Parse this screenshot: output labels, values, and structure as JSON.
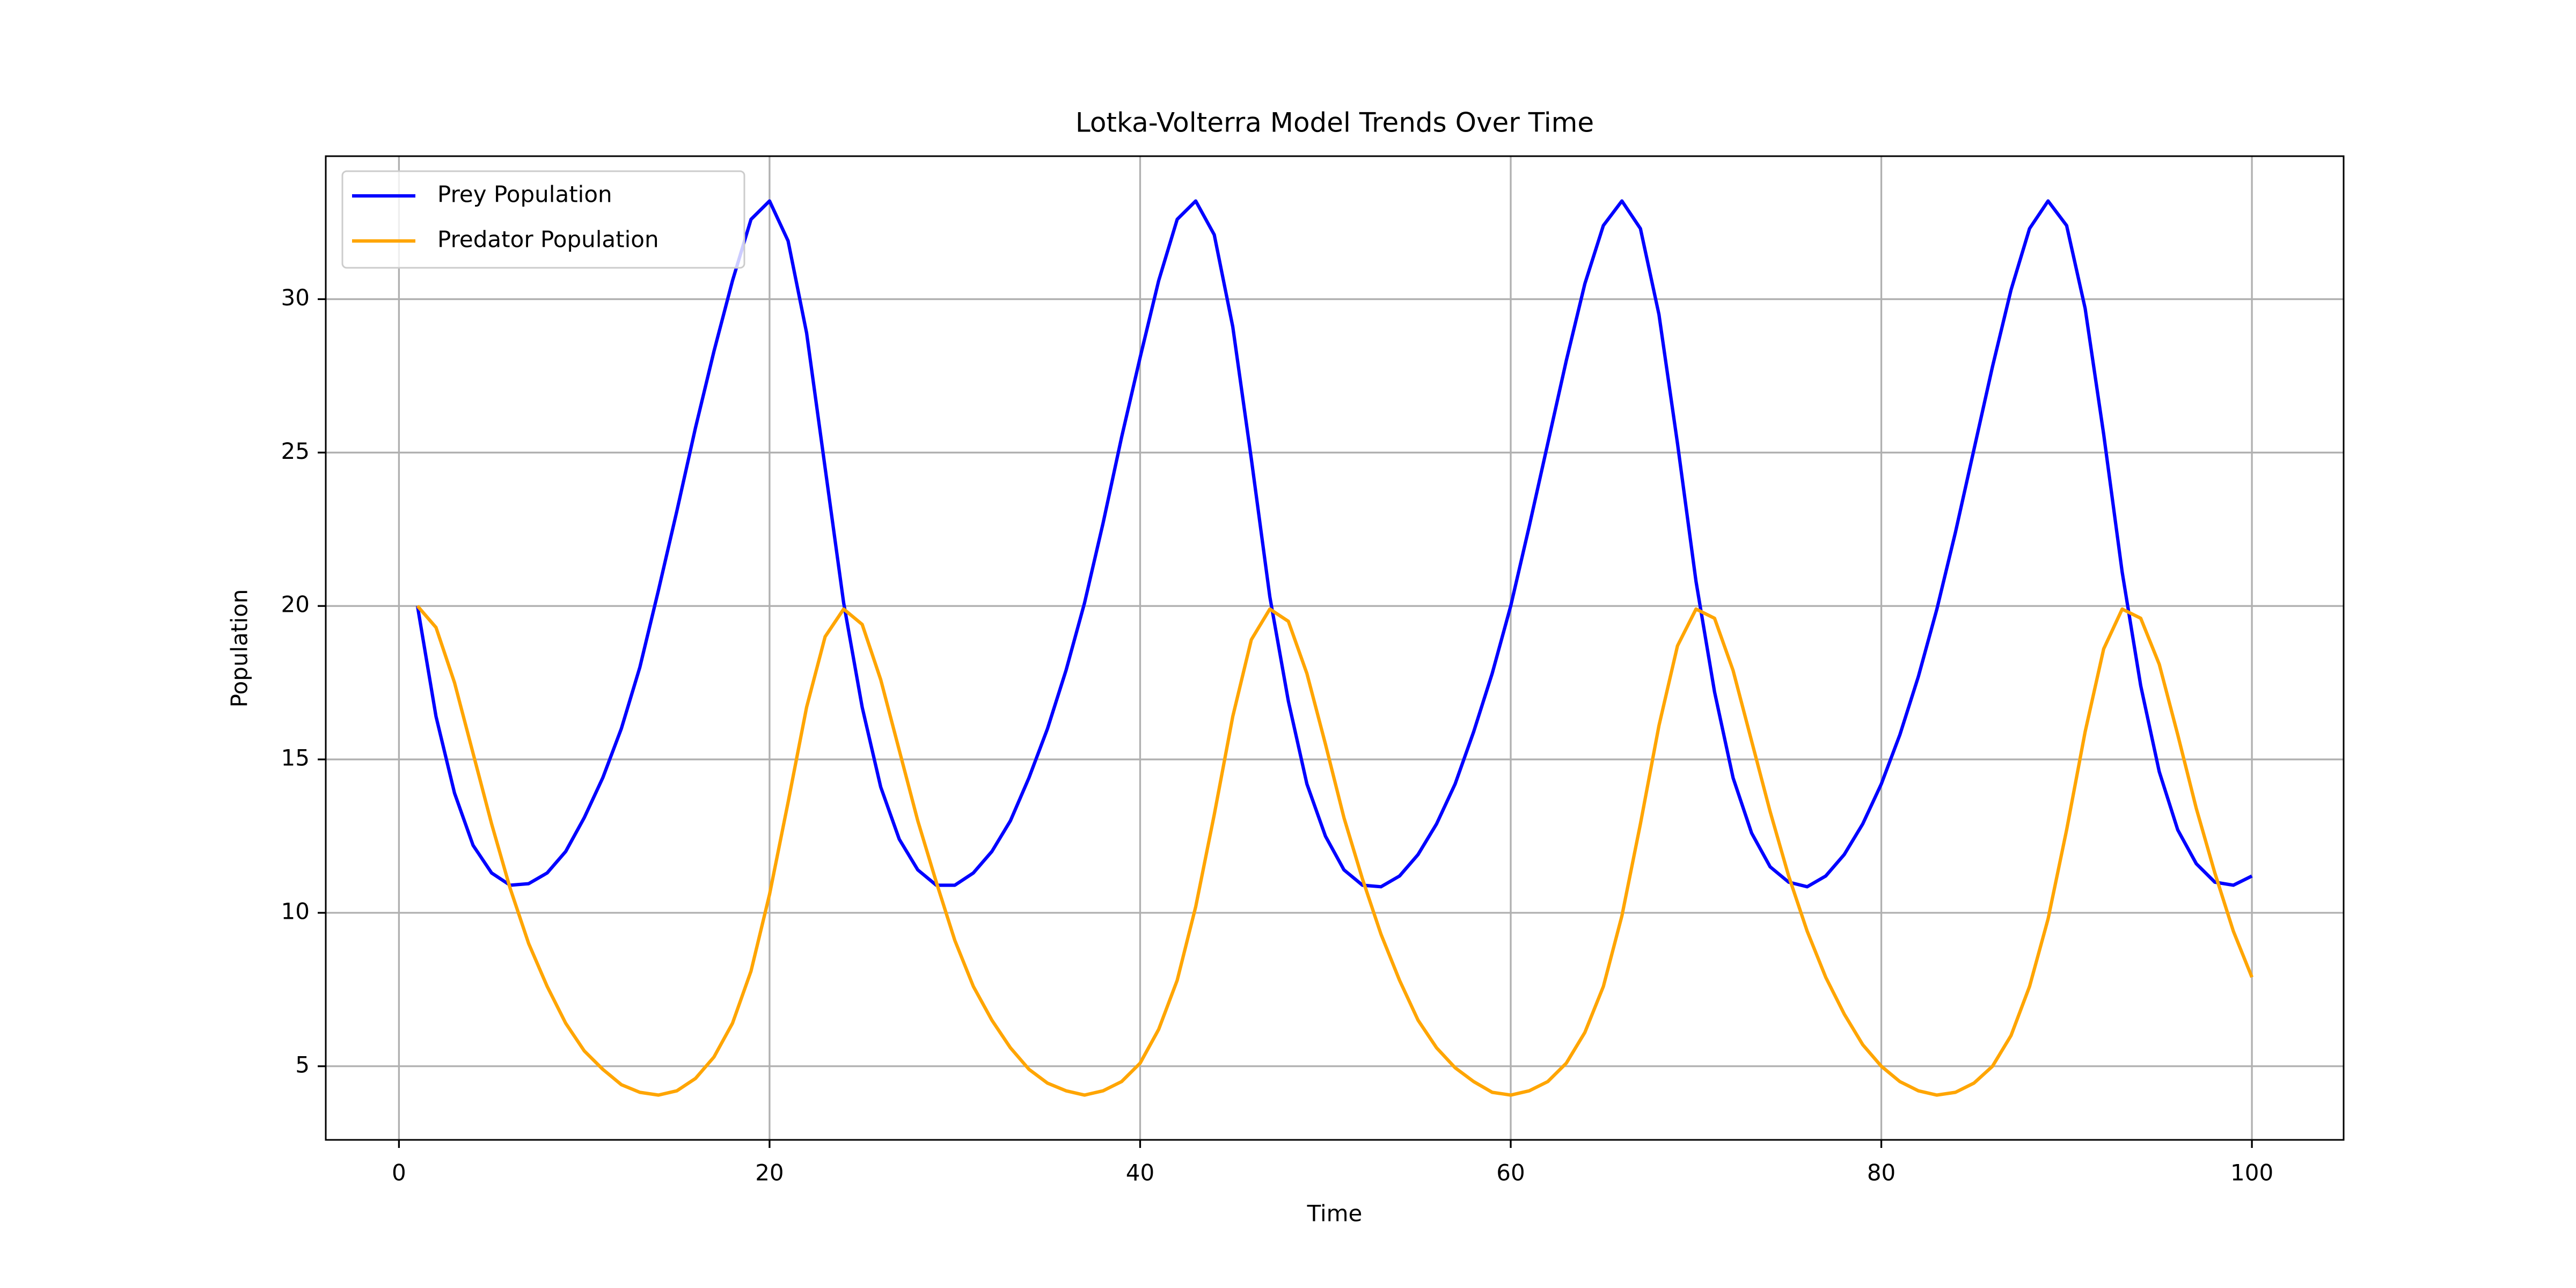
{
  "chart_data": {
    "type": "line",
    "title": "Lotka-Volterra Model Trends Over Time",
    "xlabel": "Time",
    "ylabel": "Population",
    "x": [
      1,
      2,
      3,
      4,
      5,
      6,
      7,
      8,
      9,
      10,
      11,
      12,
      13,
      14,
      15,
      16,
      17,
      18,
      19,
      20,
      21,
      22,
      23,
      24,
      25,
      26,
      27,
      28,
      29,
      30,
      31,
      32,
      33,
      34,
      35,
      36,
      37,
      38,
      39,
      40,
      41,
      42,
      43,
      44,
      45,
      46,
      47,
      48,
      49,
      50,
      51,
      52,
      53,
      54,
      55,
      56,
      57,
      58,
      59,
      60,
      61,
      62,
      63,
      64,
      65,
      66,
      67,
      68,
      69,
      70,
      71,
      72,
      73,
      74,
      75,
      76,
      77,
      78,
      79,
      80,
      81,
      82,
      83,
      84,
      85,
      86,
      87,
      88,
      89,
      90,
      91,
      92,
      93,
      94,
      95,
      96,
      97,
      98,
      99,
      100
    ],
    "series": [
      {
        "name": "Prey Population",
        "color": "#0000ff",
        "values": [
          20,
          16.4,
          13.9,
          12.2,
          11.3,
          10.9,
          10.95,
          11.3,
          12,
          13.1,
          14.4,
          16,
          18,
          20.5,
          23.1,
          25.8,
          28.3,
          30.6,
          32.6,
          33.2,
          31.9,
          28.9,
          24.5,
          20.1,
          16.7,
          14.1,
          12.4,
          11.4,
          10.9,
          10.9,
          11.3,
          12,
          13,
          14.4,
          16,
          17.9,
          20.1,
          22.7,
          25.5,
          28.1,
          30.6,
          32.6,
          33.2,
          32.1,
          29.1,
          24.8,
          20.3,
          16.9,
          14.2,
          12.5,
          11.4,
          10.9,
          10.85,
          11.2,
          11.9,
          12.9,
          14.2,
          15.9,
          17.8,
          20,
          22.6,
          25.3,
          28,
          30.5,
          32.4,
          33.2,
          32.3,
          29.5,
          25.3,
          20.8,
          17.2,
          14.4,
          12.6,
          11.5,
          11,
          10.85,
          11.2,
          11.9,
          12.9,
          14.2,
          15.8,
          17.7,
          19.9,
          22.4,
          25.1,
          27.8,
          30.3,
          32.3,
          33.2,
          32.4,
          29.7,
          25.6,
          21.1,
          17.4,
          14.6,
          12.7,
          11.6,
          11,
          10.9,
          11.2
        ]
      },
      {
        "name": "Predator Population",
        "color": "#ffa500",
        "values": [
          20,
          19.3,
          17.5,
          15.2,
          12.9,
          10.8,
          9,
          7.6,
          6.4,
          5.5,
          4.9,
          4.4,
          4.15,
          4.06,
          4.2,
          4.6,
          5.3,
          6.4,
          8.1,
          10.6,
          13.6,
          16.7,
          19,
          19.9,
          19.4,
          17.6,
          15.3,
          13,
          11,
          9.1,
          7.6,
          6.5,
          5.6,
          4.9,
          4.45,
          4.2,
          4.06,
          4.2,
          4.5,
          5.1,
          6.2,
          7.8,
          10.2,
          13.2,
          16.4,
          18.9,
          19.9,
          19.5,
          17.8,
          15.5,
          13.1,
          11.1,
          9.3,
          7.8,
          6.5,
          5.6,
          4.95,
          4.5,
          4.15,
          4.06,
          4.2,
          4.5,
          5.1,
          6.1,
          7.6,
          9.9,
          12.9,
          16.1,
          18.7,
          19.9,
          19.6,
          17.9,
          15.6,
          13.3,
          11.2,
          9.4,
          7.9,
          6.7,
          5.7,
          5,
          4.5,
          4.2,
          4.06,
          4.15,
          4.45,
          5,
          6,
          7.6,
          9.8,
          12.7,
          15.9,
          18.6,
          19.9,
          19.6,
          18.1,
          15.8,
          13.4,
          11.3,
          9.4,
          7.9
        ]
      }
    ],
    "xlim": [
      -3.95,
      104.95
    ],
    "xticks": [
      0,
      20,
      40,
      60,
      80,
      100
    ],
    "ylim": [
      2.6,
      34.66
    ],
    "yticks": [
      5,
      10,
      15,
      20,
      25,
      30
    ],
    "grid": true,
    "legend": "upper left"
  }
}
